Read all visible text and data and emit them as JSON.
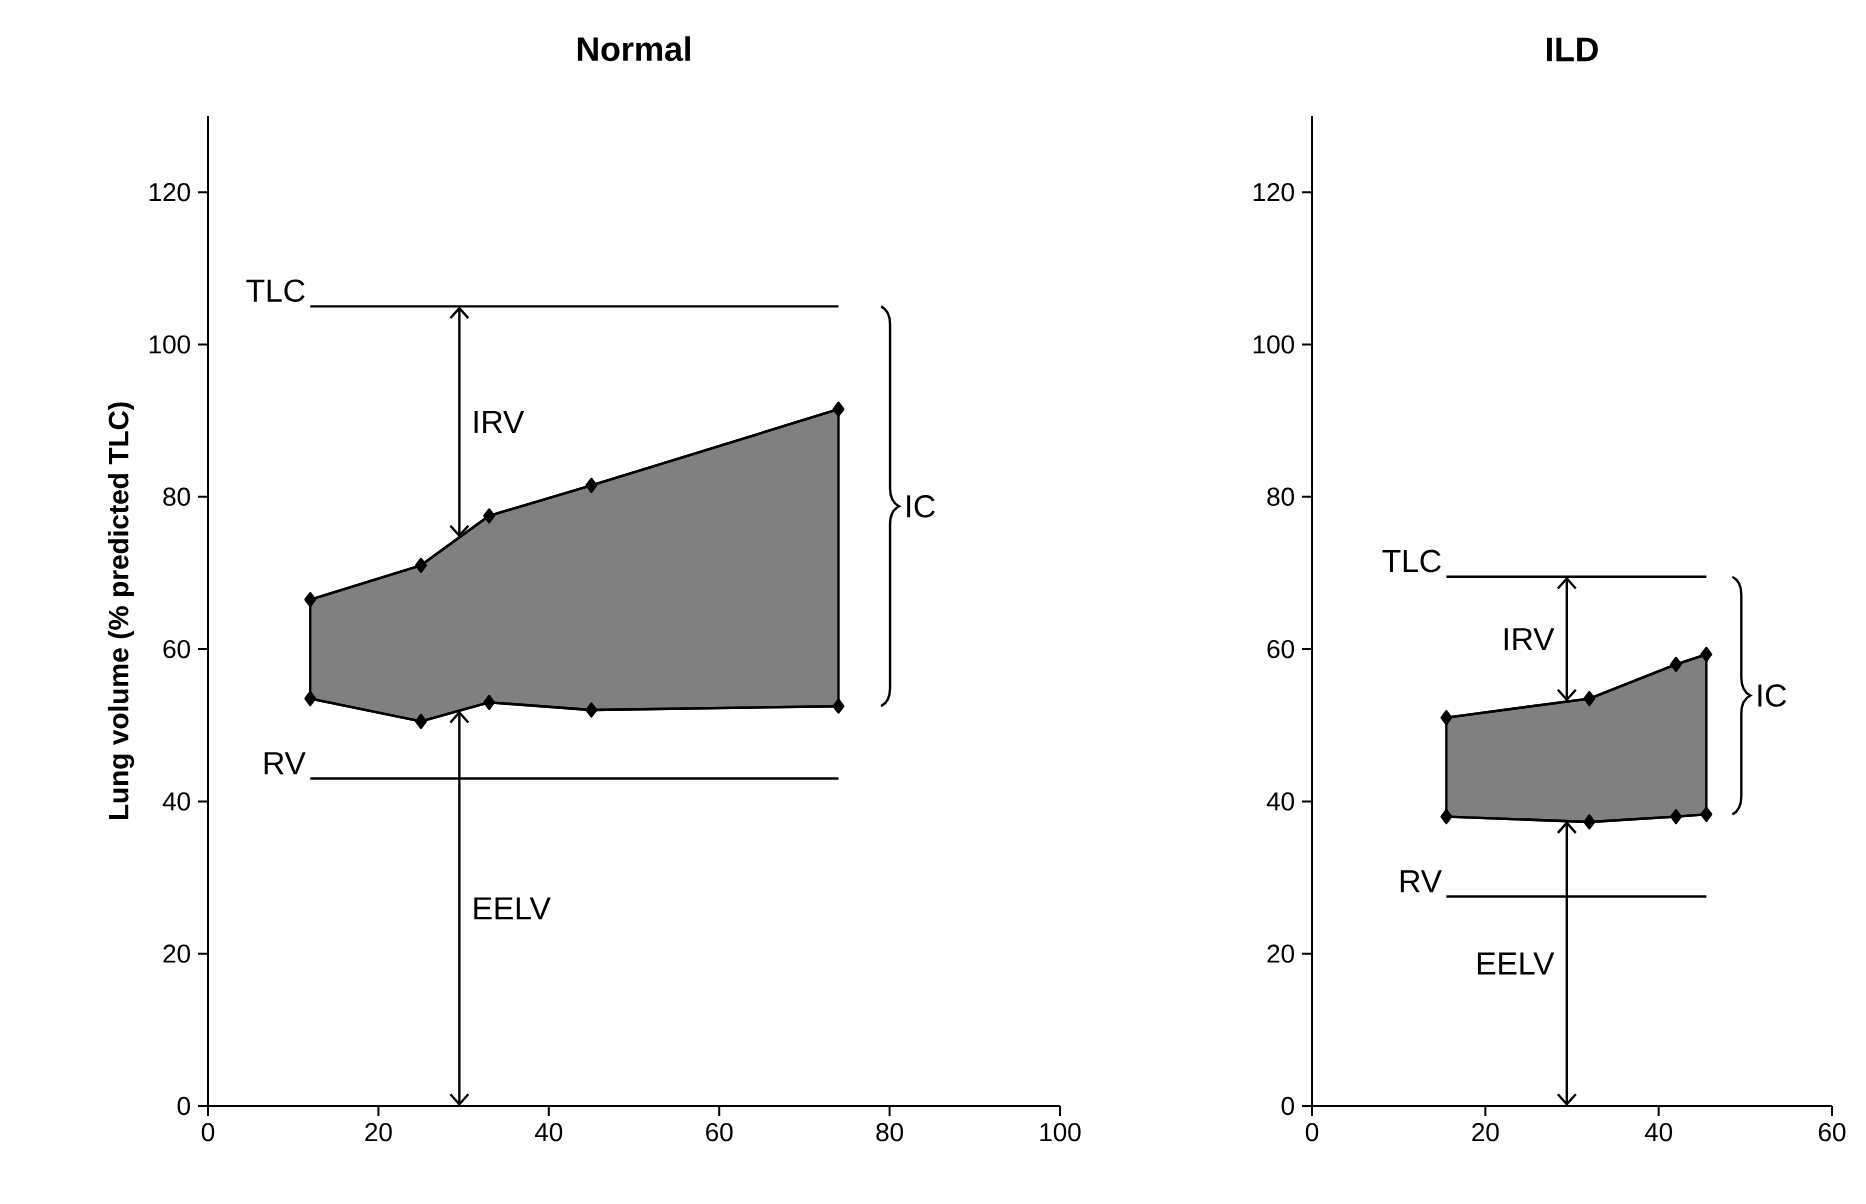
{
  "chart_data": [
    {
      "type": "line",
      "title": "Normal",
      "ylabel": "Lung volume (% predicted TLC)",
      "xlim": [
        0,
        100
      ],
      "xticks": [
        0,
        20,
        40,
        60,
        80,
        100
      ],
      "ylim": [
        0,
        130
      ],
      "yticks": [
        0,
        20,
        40,
        60,
        80,
        100,
        120
      ],
      "marker": "diamond",
      "series": [
        {
          "x": [
            12,
            25,
            33,
            45,
            74
          ],
          "values": [
            66.5,
            71,
            77.5,
            81.5,
            91.5
          ],
          "color": "#000000"
        },
        {
          "x": [
            12,
            25,
            33,
            45,
            74
          ],
          "values": [
            53.5,
            50.5,
            53,
            52,
            52.5
          ],
          "color": "#000000"
        }
      ],
      "ref_lines": [
        {
          "axis": "y",
          "value": 105,
          "label": "TLC"
        },
        {
          "axis": "y",
          "value": 43,
          "label": "RV"
        }
      ],
      "annotations": [
        "IRV",
        "EELV",
        "IC"
      ]
    },
    {
      "type": "line",
      "title": "ILD",
      "xlim": [
        0,
        60
      ],
      "xticks": [
        0,
        20,
        40,
        60
      ],
      "ylim": [
        0,
        130
      ],
      "yticks": [
        0,
        20,
        40,
        60,
        80,
        100,
        120
      ],
      "marker": "diamond",
      "series": [
        {
          "x": [
            15.5,
            32,
            42,
            45.5
          ],
          "values": [
            51,
            53.5,
            58,
            59.3
          ],
          "color": "#000000"
        },
        {
          "x": [
            15.5,
            32,
            42,
            45.5
          ],
          "values": [
            38,
            37.3,
            38,
            38.3
          ],
          "color": "#000000"
        }
      ],
      "ref_lines": [
        {
          "axis": "y",
          "value": 69.5,
          "label": "TLC"
        },
        {
          "axis": "y",
          "value": 27.5,
          "label": "RV"
        }
      ],
      "annotations": [
        "IRV",
        "EELV",
        "IC"
      ]
    }
  ]
}
